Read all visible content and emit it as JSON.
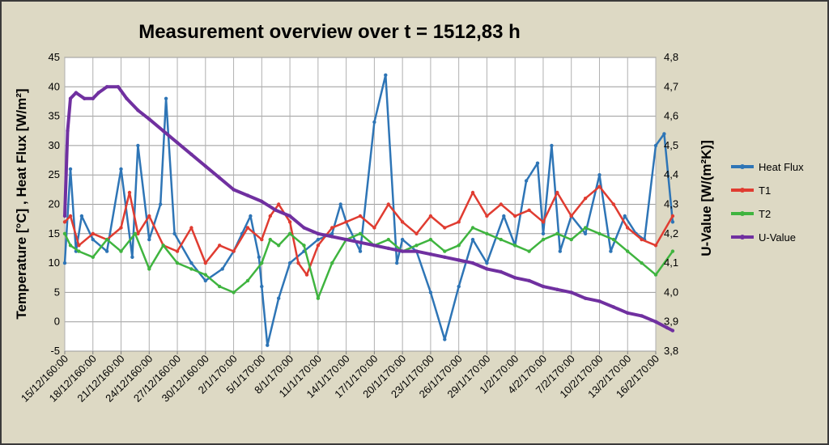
{
  "chart_data": {
    "type": "line",
    "title": "Measurement overview over t = 1512,83 h",
    "ylabel": "Temperature [°C] ,  Heat Flux [W/m²]",
    "y2label": "U-Value [W/(m²K)]",
    "ylim": [
      -5,
      45
    ],
    "y_ticks": [
      "45",
      "40",
      "35",
      "30",
      "25",
      "20",
      "15",
      "10",
      "5",
      "0",
      "-5"
    ],
    "y2lim": [
      3.8,
      4.8
    ],
    "y2_ticks": [
      "4,8",
      "4,7",
      "4,6",
      "4,5",
      "4,4",
      "4,3",
      "4,2",
      "4,1",
      "4,0",
      "3,9",
      "3,8"
    ],
    "x_ticks": [
      "15/12/160:00",
      "18/12/160:00",
      "21/12/160:00",
      "24/12/160:00",
      "27/12/160:00",
      "30/12/160:00",
      "2/1/170:00",
      "5/1/170:00",
      "8/1/170:00",
      "11/1/170:00",
      "14/1/170:00",
      "17/1/170:00",
      "20/1/170:00",
      "23/1/170:00",
      "26/1/170:00",
      "29/1/170:00",
      "1/2/170:00",
      "4/2/170:00",
      "7/2/170:00",
      "10/2/170:00",
      "13/2/170:00",
      "16/2/170:00"
    ],
    "grid": true,
    "legend_position": "right",
    "series": [
      {
        "name": "Heat Flux",
        "axis": "left",
        "color": "#2e75b6",
        "x": [
          0.0,
          0.2,
          0.4,
          0.6,
          1.0,
          1.5,
          2.0,
          2.4,
          2.6,
          3.0,
          3.4,
          3.6,
          3.9,
          4.5,
          5.0,
          5.6,
          6.0,
          6.3,
          6.6,
          6.9,
          7.0,
          7.2,
          7.6,
          8.0,
          8.5,
          9.0,
          9.5,
          9.8,
          10.0,
          10.5,
          11.0,
          11.4,
          11.8,
          12.0,
          12.5,
          13.0,
          13.5,
          14.0,
          14.5,
          15.0,
          15.6,
          16.0,
          16.4,
          16.8,
          17.0,
          17.3,
          17.6,
          18.0,
          18.5,
          19.0,
          19.4,
          19.9,
          20.3,
          20.6,
          21.0,
          21.3,
          21.6
        ],
        "y": [
          10,
          26,
          12,
          18,
          14,
          12,
          26,
          11,
          30,
          14,
          20,
          38,
          15,
          10,
          7,
          9,
          12,
          15,
          18,
          11,
          6,
          -4,
          4,
          10,
          12,
          14,
          15,
          20,
          17,
          12,
          34,
          42,
          10,
          14,
          12,
          5,
          -3,
          6,
          14,
          10,
          18,
          13,
          24,
          27,
          15,
          30,
          12,
          18,
          15,
          25,
          12,
          18,
          15,
          14,
          30,
          32,
          17
        ]
      },
      {
        "name": "T1",
        "axis": "left",
        "color": "#e03c31",
        "x": [
          0.0,
          0.2,
          0.5,
          1.0,
          1.5,
          2.0,
          2.3,
          2.6,
          3.0,
          3.5,
          4.0,
          4.5,
          5.0,
          5.5,
          6.0,
          6.5,
          7.0,
          7.3,
          7.6,
          8.0,
          8.3,
          8.6,
          9.0,
          9.5,
          10.0,
          10.5,
          11.0,
          11.5,
          12.0,
          12.5,
          13.0,
          13.5,
          14.0,
          14.5,
          15.0,
          15.5,
          16.0,
          16.5,
          17.0,
          17.5,
          18.0,
          18.5,
          19.0,
          19.5,
          20.0,
          20.5,
          21.0,
          21.6
        ],
        "y": [
          17,
          18,
          13,
          15,
          14,
          16,
          22,
          15,
          18,
          13,
          12,
          16,
          10,
          13,
          12,
          16,
          14,
          18,
          20,
          17,
          10,
          8,
          13,
          16,
          17,
          18,
          16,
          20,
          17,
          15,
          18,
          16,
          17,
          22,
          18,
          20,
          18,
          19,
          17,
          22,
          18,
          21,
          23,
          20,
          16,
          14,
          13,
          18
        ]
      },
      {
        "name": "T2",
        "axis": "left",
        "color": "#3fb43f",
        "x": [
          0.0,
          0.2,
          0.5,
          1.0,
          1.5,
          2.0,
          2.5,
          3.0,
          3.5,
          4.0,
          4.5,
          5.0,
          5.5,
          6.0,
          6.5,
          7.0,
          7.3,
          7.6,
          8.0,
          8.5,
          9.0,
          9.5,
          10.0,
          10.5,
          11.0,
          11.5,
          12.0,
          12.5,
          13.0,
          13.5,
          14.0,
          14.5,
          15.0,
          15.5,
          16.0,
          16.5,
          17.0,
          17.5,
          18.0,
          18.5,
          19.0,
          19.5,
          20.0,
          20.5,
          21.0,
          21.6
        ],
        "y": [
          15,
          13,
          12,
          11,
          14,
          12,
          15,
          9,
          13,
          10,
          9,
          8,
          6,
          5,
          7,
          10,
          14,
          13,
          15,
          13,
          4,
          10,
          14,
          15,
          13,
          14,
          12,
          13,
          14,
          12,
          13,
          16,
          15,
          14,
          13,
          12,
          14,
          15,
          14,
          16,
          15,
          14,
          12,
          10,
          8,
          12
        ]
      },
      {
        "name": "U-Value",
        "axis": "right",
        "color": "#7030a0",
        "x": [
          0.0,
          0.1,
          0.2,
          0.4,
          0.7,
          1.0,
          1.2,
          1.5,
          1.9,
          2.2,
          2.6,
          3.0,
          3.5,
          4.0,
          4.5,
          5.0,
          5.5,
          6.0,
          6.5,
          7.0,
          7.5,
          8.0,
          8.5,
          9.0,
          9.5,
          10.0,
          10.5,
          11.0,
          11.5,
          12.0,
          12.5,
          13.0,
          13.5,
          14.0,
          14.5,
          15.0,
          15.5,
          16.0,
          16.5,
          17.0,
          17.5,
          18.0,
          18.5,
          19.0,
          19.5,
          20.0,
          20.5,
          21.0,
          21.4,
          21.6
        ],
        "y": [
          4.26,
          4.55,
          4.66,
          4.68,
          4.66,
          4.66,
          4.68,
          4.7,
          4.7,
          4.66,
          4.62,
          4.59,
          4.55,
          4.51,
          4.47,
          4.43,
          4.39,
          4.35,
          4.33,
          4.31,
          4.28,
          4.26,
          4.22,
          4.2,
          4.19,
          4.18,
          4.17,
          4.16,
          4.15,
          4.14,
          4.14,
          4.13,
          4.12,
          4.11,
          4.1,
          4.08,
          4.07,
          4.05,
          4.04,
          4.02,
          4.01,
          4.0,
          3.98,
          3.97,
          3.95,
          3.93,
          3.92,
          3.9,
          3.88,
          3.87
        ]
      }
    ]
  }
}
